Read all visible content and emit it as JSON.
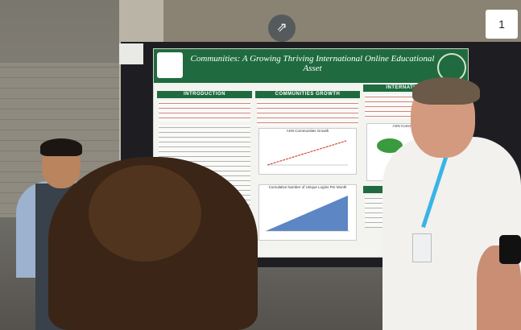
{
  "poster": {
    "title": "Communities: A Growing Thriving International Online Educational Asset",
    "sections": {
      "intro": "INTRODUCTION",
      "growth": "COMMUNITIES GROWTH",
      "international": "INTERNATIONAL IMP",
      "conclusion": "CONCLUSION"
    },
    "chart1_title": "ASN Communities Growth",
    "chart2_title": "Cumulative Number of Unique Logins Per Month",
    "chart3_title": "ASN Communities - Unique"
  },
  "booth_number": "1",
  "stairs_icon": "stairs-icon"
}
